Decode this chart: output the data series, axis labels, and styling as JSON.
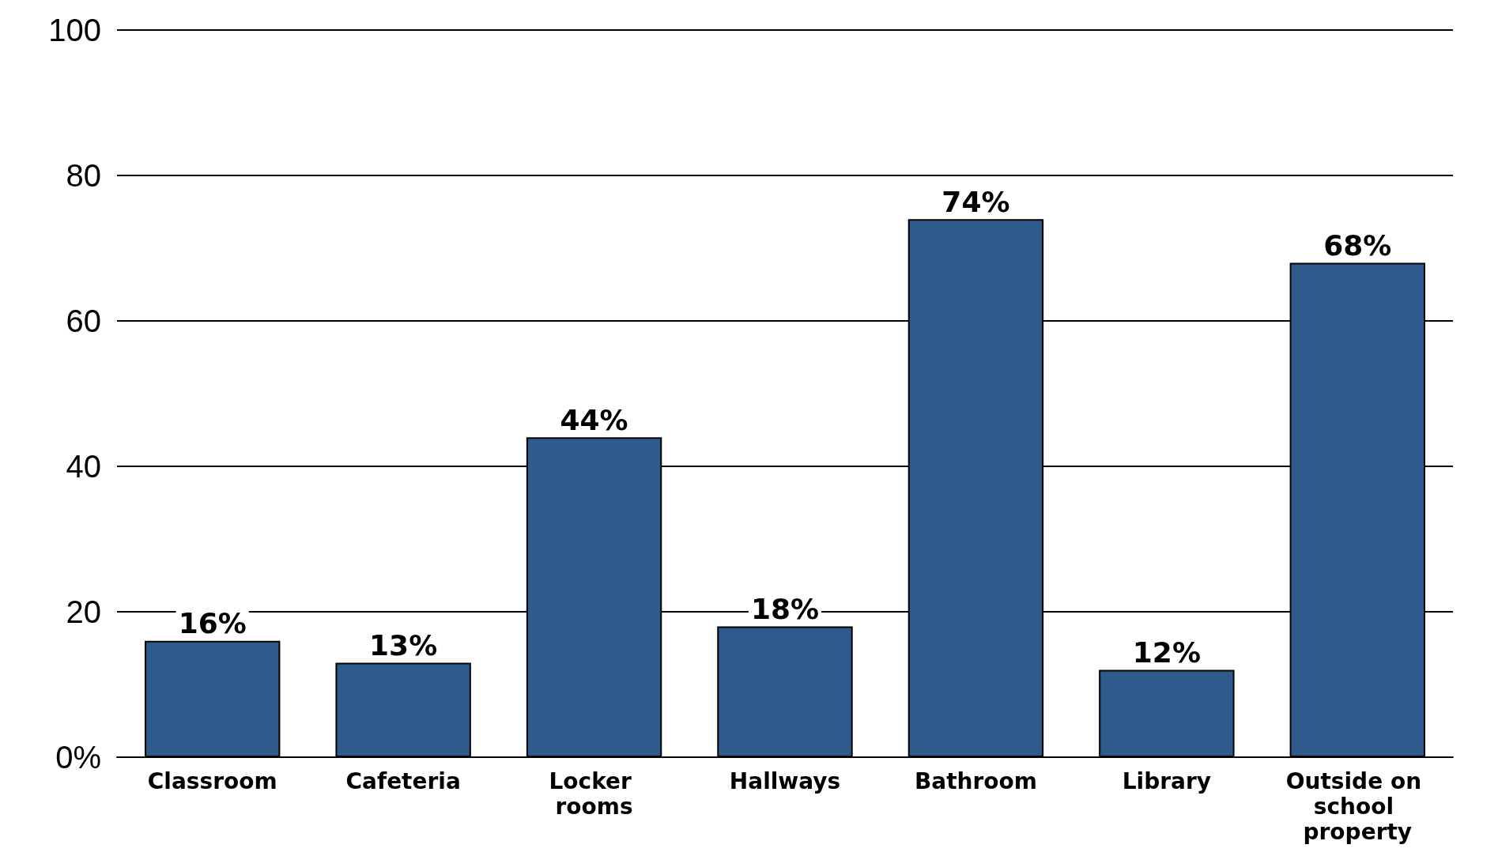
{
  "chart_data": {
    "type": "bar",
    "categories": [
      "Classroom",
      "Cafeteria",
      "Locker rooms",
      "Hallways",
      "Bathroom",
      "Library",
      "Outside on school property"
    ],
    "values": [
      16,
      13,
      44,
      18,
      74,
      12,
      68
    ],
    "value_labels": [
      "16%",
      "13%",
      "44%",
      "18%",
      "74%",
      "12%",
      "68%"
    ],
    "color": "#2f5a8c",
    "ylim": [
      0,
      100
    ],
    "yticks": [
      {
        "value": 0,
        "label": "0%"
      },
      20,
      40,
      60,
      80,
      100
    ],
    "grid": "y"
  }
}
